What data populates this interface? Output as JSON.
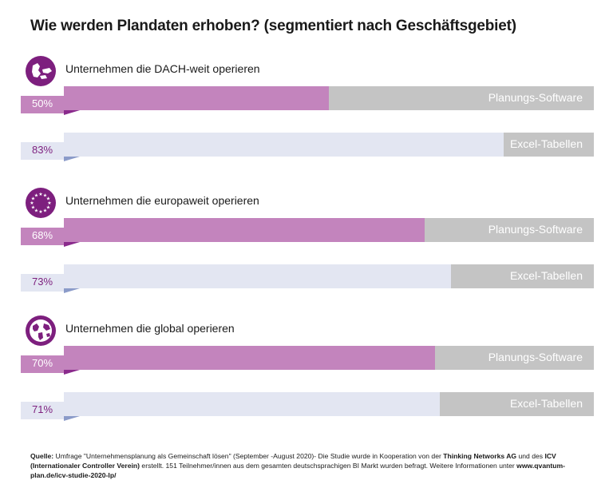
{
  "title": "Wie werden Plandaten erhoben? (segmentiert nach Geschäftsgebiet)",
  "colors": {
    "software_fill": "#c384bd",
    "software_track": "#c4c4c4",
    "excel_fill": "#e3e6f2",
    "excel_track": "#c4c4c4",
    "pct_box_software": "#c384bd",
    "pct_box_excel": "#e3e6f2",
    "notch_software": "#8a2a8c",
    "notch_excel": "#8b9bc9",
    "accent": "#7d1f7e"
  },
  "groups": [
    {
      "label": "Unternehmen die DACH-weit operieren",
      "icon": "dach-map-icon",
      "bars": [
        {
          "label": "Planungs-Software",
          "pct_text": "50%",
          "value": 50,
          "kind": "software"
        },
        {
          "label": "Excel-Tabellen",
          "pct_text": "83%",
          "value": 83,
          "kind": "excel"
        }
      ]
    },
    {
      "label": "Unternehmen die europaweit operieren",
      "icon": "eu-stars-icon",
      "bars": [
        {
          "label": "Planungs-Software",
          "pct_text": "68%",
          "value": 68,
          "kind": "software"
        },
        {
          "label": "Excel-Tabellen",
          "pct_text": "73%",
          "value": 73,
          "kind": "excel"
        }
      ]
    },
    {
      "label": "Unternehmen die global operieren",
      "icon": "globe-icon",
      "bars": [
        {
          "label": "Planungs-Software",
          "pct_text": "70%",
          "value": 70,
          "kind": "software"
        },
        {
          "label": "Excel-Tabellen",
          "pct_text": "71%",
          "value": 71,
          "kind": "excel"
        }
      ]
    }
  ],
  "source": {
    "prefix": "Quelle:",
    "text1": " Umfrage \"Unternehmensplanung als Gemeinschaft lösen\" (September -August 2020)- Die Studie wurde in Kooperation von der ",
    "org1": "Thinking Networks AG",
    "text2": " und des ",
    "org2": "ICV (Internationaler Controller Verein)",
    "text3": " erstellt. 151 Teilnehmer/innen aus dem gesamten deutschsprachigen BI Markt wurden befragt. Weitere Informationen unter ",
    "url": "www.qvantum-plan.de/icv-studie-2020-lp/"
  },
  "chart_data": {
    "type": "bar",
    "title": "Wie werden Plandaten erhoben? (segmentiert nach Geschäftsgebiet)",
    "categories": [
      "Unternehmen die DACH-weit operieren",
      "Unternehmen die europaweit operieren",
      "Unternehmen die global operieren"
    ],
    "series": [
      {
        "name": "Planungs-Software",
        "values": [
          50,
          68,
          70
        ]
      },
      {
        "name": "Excel-Tabellen",
        "values": [
          83,
          73,
          71
        ]
      }
    ],
    "ylim": [
      0,
      100
    ],
    "xlabel": "",
    "ylabel": ""
  }
}
